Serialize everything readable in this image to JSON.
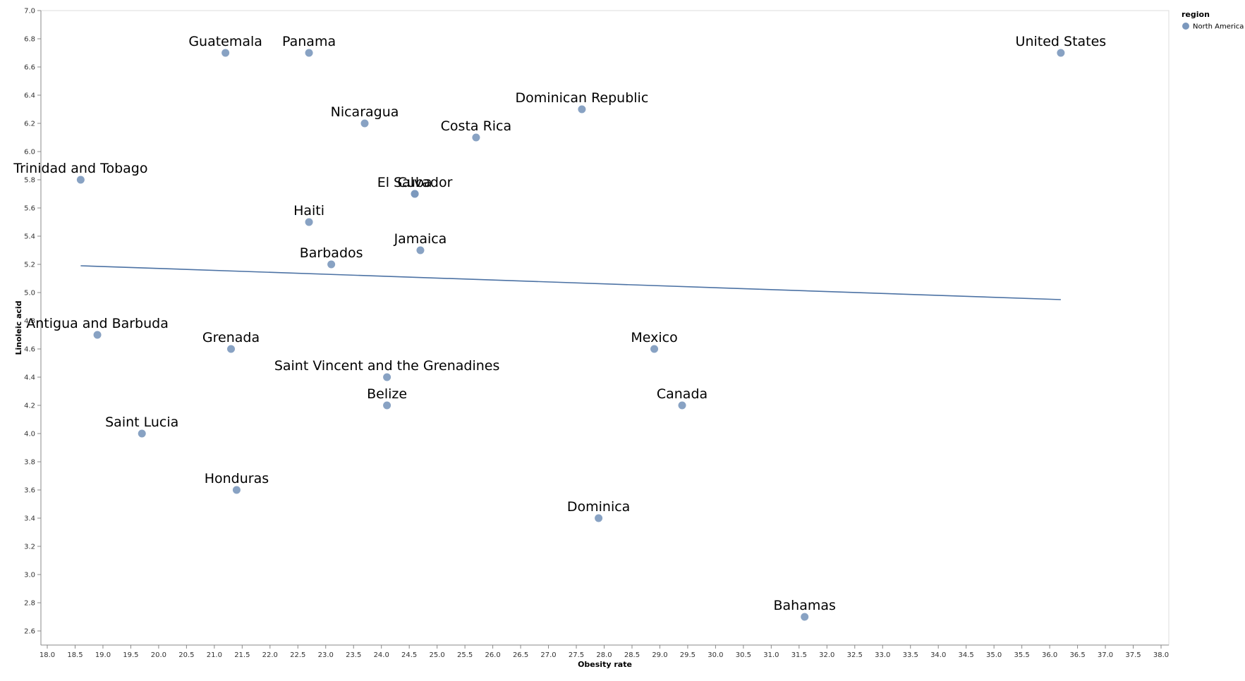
{
  "chart_data": {
    "type": "scatter",
    "title": "",
    "xlabel": "Obesity rate",
    "ylabel": "Linoleic acid",
    "xlim": [
      18.0,
      38.0
    ],
    "ylim": [
      2.5,
      7.0
    ],
    "x_ticks": [
      18.0,
      18.5,
      19.0,
      19.5,
      20.0,
      20.5,
      21.0,
      21.5,
      22.0,
      22.5,
      23.0,
      23.5,
      24.0,
      24.5,
      25.0,
      25.5,
      26.0,
      26.5,
      27.0,
      27.5,
      28.0,
      28.5,
      29.0,
      29.5,
      30.0,
      30.5,
      31.0,
      31.5,
      32.0,
      32.5,
      33.0,
      33.5,
      34.0,
      34.5,
      35.0,
      35.5,
      36.0,
      36.5,
      37.0,
      37.5,
      38.0
    ],
    "y_ticks": [
      2.6,
      2.8,
      3.0,
      3.2,
      3.4,
      3.6,
      3.8,
      4.0,
      4.2,
      4.4,
      4.6,
      4.8,
      5.0,
      5.2,
      5.4,
      5.6,
      5.8,
      6.0,
      6.2,
      6.4,
      6.6,
      6.8,
      7.0
    ],
    "grid": false,
    "legend": {
      "title": "region",
      "placement": "top-right",
      "entries": [
        {
          "label": "North America",
          "color": "#7b98bd"
        }
      ]
    },
    "series": [
      {
        "name": "North America",
        "color": "#7b98bd",
        "points": [
          {
            "label": "Guatemala",
            "x": 21.2,
            "y": 6.7
          },
          {
            "label": "Panama",
            "x": 22.7,
            "y": 6.7
          },
          {
            "label": "United States",
            "x": 36.2,
            "y": 6.7
          },
          {
            "label": "Dominican Republic",
            "x": 27.6,
            "y": 6.3
          },
          {
            "label": "Nicaragua",
            "x": 23.7,
            "y": 6.2
          },
          {
            "label": "Costa Rica",
            "x": 25.7,
            "y": 6.1
          },
          {
            "label": "Trinidad and Tobago",
            "x": 18.6,
            "y": 5.8
          },
          {
            "label": "El Salvador",
            "x": 24.6,
            "y": 5.7
          },
          {
            "label": "Cuba",
            "x": 24.6,
            "y": 5.7
          },
          {
            "label": "Haiti",
            "x": 22.7,
            "y": 5.5
          },
          {
            "label": "Jamaica",
            "x": 24.7,
            "y": 5.3
          },
          {
            "label": "Barbados",
            "x": 23.1,
            "y": 5.2
          },
          {
            "label": "Antigua and Barbuda",
            "x": 18.9,
            "y": 4.7
          },
          {
            "label": "Grenada",
            "x": 21.3,
            "y": 4.6
          },
          {
            "label": "Mexico",
            "x": 28.9,
            "y": 4.6
          },
          {
            "label": "Saint Vincent and the Grenadines",
            "x": 24.1,
            "y": 4.4
          },
          {
            "label": "Belize",
            "x": 24.1,
            "y": 4.2
          },
          {
            "label": "Canada",
            "x": 29.4,
            "y": 4.2
          },
          {
            "label": "Saint Lucia",
            "x": 19.7,
            "y": 4.0
          },
          {
            "label": "Honduras",
            "x": 21.4,
            "y": 3.6
          },
          {
            "label": "Dominica",
            "x": 27.9,
            "y": 3.4
          },
          {
            "label": "Bahamas",
            "x": 31.6,
            "y": 2.7
          }
        ]
      }
    ],
    "trend_line": {
      "color": "#4c72a4",
      "points": [
        {
          "x": 18.6,
          "y": 5.19
        },
        {
          "x": 36.2,
          "y": 4.95
        }
      ]
    }
  }
}
